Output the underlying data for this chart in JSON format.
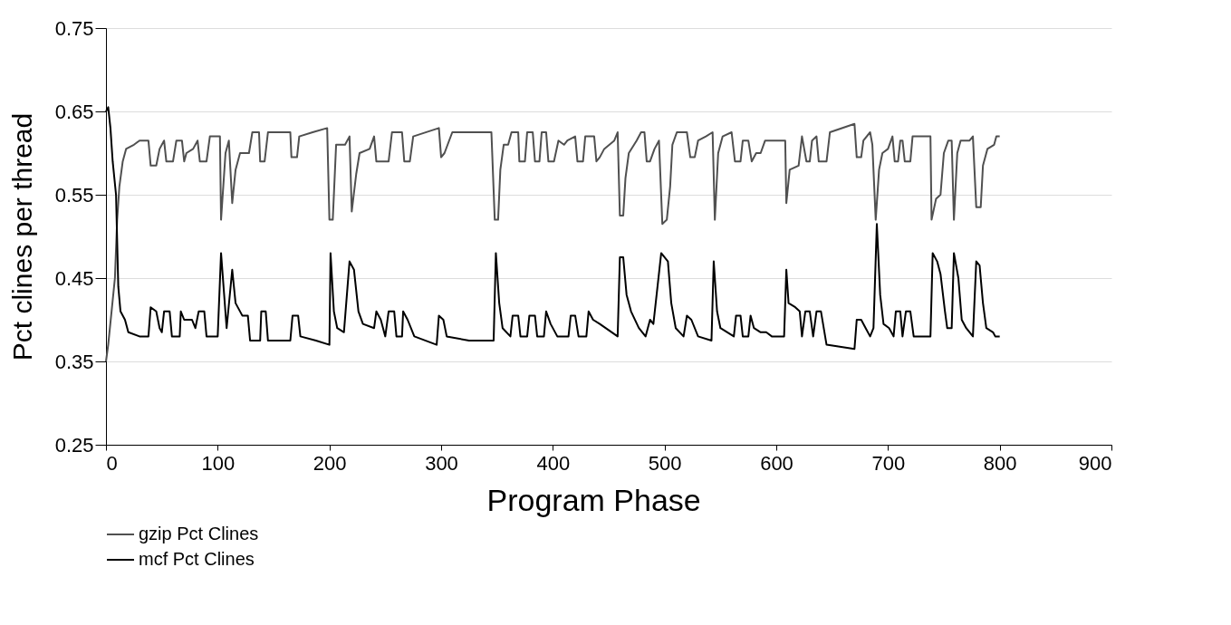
{
  "chart_data": {
    "type": "line",
    "xlabel": "Program Phase",
    "ylabel": "Pct clines per thread",
    "xlim": [
      0,
      900
    ],
    "xticks": [
      0,
      100,
      200,
      300,
      400,
      500,
      600,
      700,
      800,
      900
    ],
    "ylim": [
      0.25,
      0.75
    ],
    "yticks": [
      0.25,
      0.35,
      0.45,
      0.55,
      0.65,
      0.75
    ],
    "grid": "y",
    "legend": "bottom left",
    "line_style": "solid",
    "series": [
      {
        "name": "gzip Pct Clines",
        "color": "#505050",
        "x": [
          0,
          2,
          5,
          8,
          10,
          12,
          15,
          18,
          25,
          30,
          38,
          40,
          45,
          48,
          52,
          54,
          60,
          63,
          68,
          70,
          72,
          78,
          82,
          84,
          90,
          93,
          102,
          103,
          107,
          110,
          113,
          116,
          120,
          128,
          131,
          137,
          138,
          142,
          145,
          165,
          166,
          171,
          173,
          185,
          198,
          200,
          203,
          206,
          214,
          218,
          220,
          224,
          227,
          236,
          240,
          242,
          253,
          256,
          265,
          267,
          272,
          275,
          298,
          300,
          303,
          310,
          323,
          345,
          348,
          351,
          353,
          356,
          360,
          363,
          369,
          370,
          375,
          377,
          382,
          384,
          388,
          390,
          394,
          396,
          401,
          405,
          410,
          413,
          420,
          422,
          427,
          429,
          437,
          439,
          442,
          446,
          455,
          458,
          460,
          463,
          465,
          468,
          475,
          479,
          482,
          484,
          487,
          491,
          495,
          498,
          502,
          505,
          507,
          511,
          520,
          523,
          527,
          530,
          537,
          543,
          545,
          548,
          552,
          560,
          563,
          568,
          570,
          575,
          578,
          582,
          586,
          590,
          596,
          608,
          609,
          612,
          620,
          623,
          627,
          630,
          632,
          636,
          638,
          645,
          648,
          670,
          672,
          676,
          678,
          684,
          686,
          689,
          692,
          695,
          700,
          704,
          706,
          709,
          711,
          713,
          715,
          720,
          722,
          738,
          739,
          743,
          747,
          750,
          754,
          757,
          759,
          762,
          765,
          773,
          776,
          779,
          783,
          785,
          789,
          795,
          797,
          800
        ],
        "values": [
          0.35,
          0.37,
          0.41,
          0.45,
          0.52,
          0.56,
          0.59,
          0.605,
          0.61,
          0.615,
          0.615,
          0.585,
          0.585,
          0.605,
          0.615,
          0.59,
          0.59,
          0.615,
          0.615,
          0.59,
          0.6,
          0.605,
          0.615,
          0.59,
          0.59,
          0.62,
          0.62,
          0.52,
          0.6,
          0.615,
          0.54,
          0.58,
          0.6,
          0.6,
          0.625,
          0.625,
          0.59,
          0.59,
          0.625,
          0.625,
          0.595,
          0.595,
          0.62,
          0.625,
          0.63,
          0.52,
          0.52,
          0.61,
          0.61,
          0.62,
          0.53,
          0.575,
          0.6,
          0.605,
          0.62,
          0.59,
          0.59,
          0.625,
          0.625,
          0.59,
          0.59,
          0.62,
          0.63,
          0.595,
          0.6,
          0.625,
          0.625,
          0.625,
          0.52,
          0.52,
          0.58,
          0.61,
          0.61,
          0.625,
          0.625,
          0.59,
          0.59,
          0.625,
          0.625,
          0.59,
          0.59,
          0.625,
          0.625,
          0.59,
          0.59,
          0.615,
          0.61,
          0.615,
          0.62,
          0.59,
          0.59,
          0.62,
          0.62,
          0.59,
          0.595,
          0.605,
          0.615,
          0.625,
          0.525,
          0.525,
          0.57,
          0.6,
          0.615,
          0.625,
          0.625,
          0.59,
          0.59,
          0.605,
          0.615,
          0.515,
          0.52,
          0.56,
          0.61,
          0.625,
          0.625,
          0.595,
          0.595,
          0.615,
          0.62,
          0.625,
          0.52,
          0.6,
          0.62,
          0.625,
          0.59,
          0.59,
          0.615,
          0.615,
          0.59,
          0.6,
          0.6,
          0.615,
          0.615,
          0.615,
          0.54,
          0.58,
          0.585,
          0.62,
          0.59,
          0.59,
          0.615,
          0.62,
          0.59,
          0.59,
          0.625,
          0.635,
          0.595,
          0.595,
          0.615,
          0.625,
          0.61,
          0.52,
          0.58,
          0.6,
          0.605,
          0.62,
          0.59,
          0.59,
          0.615,
          0.615,
          0.59,
          0.59,
          0.62,
          0.62,
          0.52,
          0.545,
          0.55,
          0.6,
          0.615,
          0.615,
          0.52,
          0.6,
          0.615,
          0.615,
          0.62,
          0.535,
          0.535,
          0.585,
          0.605,
          0.61,
          0.62,
          0.62
        ]
      },
      {
        "name": "mcf Pct Clines",
        "color": "#000000",
        "x": [
          0,
          2,
          4,
          6,
          9,
          11,
          13,
          17,
          20,
          30,
          38,
          40,
          45,
          48,
          50,
          52,
          57,
          59,
          66,
          67,
          70,
          77,
          80,
          83,
          88,
          90,
          100,
          103,
          108,
          113,
          116,
          122,
          127,
          129,
          138,
          139,
          143,
          145,
          165,
          167,
          172,
          174,
          188,
          200,
          201,
          204,
          207,
          213,
          218,
          222,
          226,
          230,
          240,
          242,
          246,
          250,
          253,
          258,
          260,
          265,
          266,
          270,
          276,
          296,
          298,
          302,
          305,
          325,
          347,
          349,
          352,
          355,
          362,
          364,
          369,
          371,
          377,
          379,
          384,
          386,
          392,
          394,
          398,
          404,
          414,
          416,
          420,
          423,
          430,
          432,
          436,
          442,
          458,
          460,
          463,
          466,
          470,
          477,
          483,
          487,
          490,
          497,
          503,
          506,
          510,
          517,
          520,
          524,
          530,
          542,
          544,
          547,
          550,
          562,
          564,
          568,
          570,
          575,
          577,
          580,
          586,
          591,
          596,
          607,
          609,
          611,
          617,
          621,
          623,
          626,
          630,
          633,
          636,
          640,
          645,
          670,
          672,
          676,
          680,
          684,
          687,
          690,
          693,
          696,
          701,
          705,
          707,
          711,
          713,
          716,
          720,
          723,
          738,
          740,
          744,
          747,
          751,
          753,
          757,
          759,
          763,
          766,
          770,
          776,
          779,
          782,
          785,
          788,
          794,
          796,
          800
        ],
        "values": [
          0.65,
          0.655,
          0.63,
          0.59,
          0.55,
          0.44,
          0.41,
          0.4,
          0.385,
          0.38,
          0.38,
          0.415,
          0.41,
          0.39,
          0.385,
          0.41,
          0.41,
          0.38,
          0.38,
          0.41,
          0.4,
          0.4,
          0.39,
          0.41,
          0.41,
          0.38,
          0.38,
          0.48,
          0.39,
          0.46,
          0.42,
          0.405,
          0.405,
          0.375,
          0.375,
          0.41,
          0.41,
          0.375,
          0.375,
          0.405,
          0.405,
          0.38,
          0.375,
          0.37,
          0.48,
          0.41,
          0.39,
          0.385,
          0.47,
          0.46,
          0.41,
          0.395,
          0.39,
          0.41,
          0.4,
          0.38,
          0.41,
          0.41,
          0.38,
          0.38,
          0.41,
          0.4,
          0.38,
          0.37,
          0.405,
          0.4,
          0.38,
          0.375,
          0.375,
          0.48,
          0.42,
          0.39,
          0.38,
          0.405,
          0.405,
          0.38,
          0.38,
          0.405,
          0.405,
          0.38,
          0.38,
          0.41,
          0.395,
          0.38,
          0.38,
          0.405,
          0.405,
          0.38,
          0.38,
          0.41,
          0.4,
          0.395,
          0.38,
          0.475,
          0.475,
          0.43,
          0.41,
          0.39,
          0.38,
          0.4,
          0.395,
          0.48,
          0.47,
          0.42,
          0.39,
          0.38,
          0.405,
          0.4,
          0.38,
          0.375,
          0.47,
          0.41,
          0.39,
          0.38,
          0.405,
          0.405,
          0.38,
          0.38,
          0.405,
          0.39,
          0.385,
          0.385,
          0.38,
          0.38,
          0.46,
          0.42,
          0.415,
          0.41,
          0.38,
          0.41,
          0.41,
          0.38,
          0.41,
          0.41,
          0.37,
          0.365,
          0.4,
          0.4,
          0.39,
          0.38,
          0.39,
          0.515,
          0.43,
          0.395,
          0.39,
          0.38,
          0.41,
          0.41,
          0.38,
          0.41,
          0.41,
          0.38,
          0.38,
          0.48,
          0.47,
          0.455,
          0.41,
          0.39,
          0.39,
          0.48,
          0.45,
          0.4,
          0.39,
          0.38,
          0.47,
          0.465,
          0.42,
          0.39,
          0.385,
          0.38,
          0.38
        ]
      }
    ]
  }
}
